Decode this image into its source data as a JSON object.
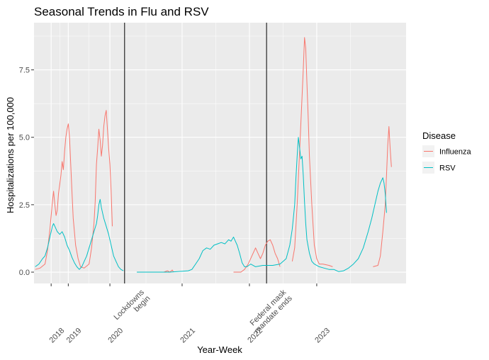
{
  "chart_data": {
    "type": "line",
    "title": "Seasonal Trends in Flu and RSV",
    "xlabel": "Year-Week",
    "ylabel": "Hospitalizations per 100,000",
    "x_units": "weeks since 2017-W40",
    "x_range": [
      -1,
      303
    ],
    "ylim": [
      -0.42,
      9.25
    ],
    "y_ticks": [
      0.0,
      2.5,
      5.0,
      7.5
    ],
    "y_tick_labels": [
      "0.0",
      "2.5",
      "5.0",
      "7.5"
    ],
    "x_ticks": [
      {
        "x": 13,
        "label": "2018"
      },
      {
        "x": 27,
        "label": "2019"
      },
      {
        "x": 61,
        "label": "2020"
      },
      {
        "x": 120,
        "label": "2021"
      },
      {
        "x": 175,
        "label": "2022"
      },
      {
        "x": 230,
        "label": "2023"
      }
    ],
    "events": [
      {
        "x": 73,
        "label_lines": [
          "Lockdowns",
          "begin"
        ]
      },
      {
        "x": 189,
        "label_lines": [
          "Federal mask",
          "mandate ends"
        ]
      }
    ],
    "grid": true,
    "legend": {
      "title": "Disease",
      "position": "right"
    },
    "series": [
      {
        "name": "Influenza",
        "color": "#F8766D",
        "segments": [
          [
            [
              0,
              0.1
            ],
            [
              4,
              0.15
            ],
            [
              8,
              0.3
            ],
            [
              10,
              0.8
            ],
            [
              12,
              1.6
            ],
            [
              14,
              2.6
            ],
            [
              15,
              3.0
            ],
            [
              16,
              2.5
            ],
            [
              17,
              2.1
            ],
            [
              18,
              2.3
            ],
            [
              19,
              2.9
            ],
            [
              21,
              3.6
            ],
            [
              22,
              4.1
            ],
            [
              23,
              3.8
            ],
            [
              24,
              4.5
            ],
            [
              25,
              5.0
            ],
            [
              26,
              5.3
            ],
            [
              27,
              5.5
            ],
            [
              28,
              5.0
            ],
            [
              29,
              4.0
            ],
            [
              30,
              3.0
            ],
            [
              31,
              2.0
            ],
            [
              33,
              1.0
            ],
            [
              35,
              0.5
            ],
            [
              37,
              0.2
            ],
            [
              40,
              0.15
            ],
            [
              44,
              0.3
            ],
            [
              46,
              0.9
            ],
            [
              48,
              1.8
            ],
            [
              49,
              2.6
            ],
            [
              50,
              4.0
            ],
            [
              51,
              4.6
            ],
            [
              52,
              5.3
            ],
            [
              53,
              4.9
            ],
            [
              54,
              4.3
            ],
            [
              55,
              4.7
            ],
            [
              56,
              5.4
            ],
            [
              57,
              5.8
            ],
            [
              58,
              6.0
            ],
            [
              59,
              5.3
            ],
            [
              60,
              4.6
            ],
            [
              61,
              4.0
            ],
            [
              62,
              3.0
            ],
            [
              63,
              1.7
            ]
          ],
          [
            [
              105,
              0.0
            ],
            [
              108,
              0.05
            ],
            [
              110,
              0.0
            ],
            [
              112,
              0.08
            ],
            [
              113,
              0.0
            ]
          ],
          [
            [
              162,
              0.0
            ],
            [
              168,
              0.0
            ],
            [
              171,
              0.1
            ],
            [
              174,
              0.3
            ],
            [
              177,
              0.6
            ],
            [
              180,
              0.9
            ],
            [
              182,
              0.7
            ],
            [
              184,
              0.5
            ],
            [
              186,
              0.7
            ],
            [
              188,
              1.0
            ],
            [
              190,
              1.15
            ],
            [
              192,
              1.2
            ],
            [
              194,
              1.0
            ],
            [
              196,
              0.7
            ],
            [
              198,
              0.5
            ],
            [
              200,
              0.2
            ]
          ],
          [
            [
              210,
              0.4
            ],
            [
              212,
              0.9
            ],
            [
              214,
              2.5
            ],
            [
              216,
              4.5
            ],
            [
              218,
              6.5
            ],
            [
              219,
              7.5
            ],
            [
              220,
              8.7
            ],
            [
              221,
              8.3
            ],
            [
              222,
              7.0
            ],
            [
              223,
              5.8
            ],
            [
              224,
              4.3
            ],
            [
              226,
              2.5
            ],
            [
              228,
              1.0
            ],
            [
              230,
              0.5
            ],
            [
              232,
              0.3
            ],
            [
              235,
              0.3
            ],
            [
              240,
              0.25
            ],
            [
              243,
              0.2
            ]
          ],
          [
            [
              276,
              0.2
            ],
            [
              280,
              0.25
            ],
            [
              282,
              0.6
            ],
            [
              284,
              1.5
            ],
            [
              286,
              2.5
            ],
            [
              287,
              3.6
            ],
            [
              288,
              4.7
            ],
            [
              289,
              5.4
            ],
            [
              290,
              4.6
            ],
            [
              291,
              3.9
            ]
          ]
        ]
      },
      {
        "name": "RSV",
        "color": "#00BFC4",
        "segments": [
          [
            [
              0,
              0.2
            ],
            [
              3,
              0.3
            ],
            [
              6,
              0.5
            ],
            [
              8,
              0.6
            ],
            [
              10,
              0.9
            ],
            [
              12,
              1.3
            ],
            [
              14,
              1.7
            ],
            [
              15,
              1.8
            ],
            [
              16,
              1.7
            ],
            [
              18,
              1.5
            ],
            [
              20,
              1.4
            ],
            [
              22,
              1.5
            ],
            [
              24,
              1.3
            ],
            [
              26,
              1.0
            ],
            [
              28,
              0.8
            ],
            [
              30,
              0.55
            ],
            [
              32,
              0.35
            ],
            [
              34,
              0.2
            ],
            [
              36,
              0.1
            ],
            [
              38,
              0.2
            ],
            [
              40,
              0.4
            ],
            [
              42,
              0.6
            ],
            [
              44,
              0.9
            ],
            [
              46,
              1.2
            ],
            [
              48,
              1.5
            ],
            [
              50,
              1.8
            ],
            [
              51,
              2.1
            ],
            [
              52,
              2.5
            ],
            [
              53,
              2.7
            ],
            [
              54,
              2.4
            ],
            [
              56,
              2.0
            ],
            [
              58,
              1.7
            ],
            [
              60,
              1.4
            ],
            [
              62,
              1.0
            ],
            [
              64,
              0.6
            ],
            [
              66,
              0.4
            ],
            [
              68,
              0.2
            ],
            [
              70,
              0.1
            ],
            [
              72,
              0.05
            ]
          ],
          [
            [
              83,
              0.0
            ],
            [
              110,
              0.0
            ],
            [
              125,
              0.05
            ],
            [
              128,
              0.1
            ],
            [
              131,
              0.3
            ],
            [
              134,
              0.5
            ],
            [
              137,
              0.8
            ],
            [
              140,
              0.9
            ],
            [
              143,
              0.85
            ],
            [
              146,
              1.0
            ],
            [
              149,
              1.05
            ],
            [
              152,
              1.1
            ],
            [
              155,
              1.05
            ],
            [
              158,
              1.2
            ],
            [
              160,
              1.15
            ],
            [
              162,
              1.3
            ],
            [
              163,
              1.2
            ],
            [
              165,
              1.0
            ],
            [
              167,
              0.7
            ],
            [
              169,
              0.35
            ],
            [
              171,
              0.2
            ],
            [
              173,
              0.2
            ],
            [
              176,
              0.3
            ],
            [
              180,
              0.2
            ],
            [
              186,
              0.25
            ],
            [
              194,
              0.25
            ],
            [
              200,
              0.3
            ],
            [
              205,
              0.5
            ],
            [
              208,
              1.0
            ],
            [
              210,
              1.6
            ],
            [
              212,
              2.5
            ],
            [
              213,
              3.5
            ],
            [
              214,
              4.3
            ],
            [
              215,
              5.0
            ],
            [
              216,
              4.6
            ],
            [
              217,
              4.2
            ],
            [
              218,
              4.3
            ],
            [
              219,
              3.6
            ],
            [
              220,
              2.6
            ],
            [
              221,
              1.8
            ],
            [
              222,
              1.2
            ],
            [
              224,
              0.7
            ],
            [
              226,
              0.4
            ],
            [
              228,
              0.3
            ],
            [
              232,
              0.2
            ],
            [
              236,
              0.15
            ],
            [
              240,
              0.1
            ],
            [
              244,
              0.1
            ],
            [
              248,
              0.02
            ],
            [
              252,
              0.05
            ],
            [
              256,
              0.15
            ],
            [
              260,
              0.3
            ],
            [
              264,
              0.5
            ],
            [
              268,
              0.9
            ],
            [
              272,
              1.5
            ],
            [
              275,
              2.0
            ],
            [
              278,
              2.6
            ],
            [
              280,
              3.0
            ],
            [
              282,
              3.3
            ],
            [
              284,
              3.5
            ],
            [
              285,
              3.3
            ],
            [
              286,
              2.9
            ],
            [
              287,
              2.2
            ]
          ]
        ]
      }
    ]
  }
}
